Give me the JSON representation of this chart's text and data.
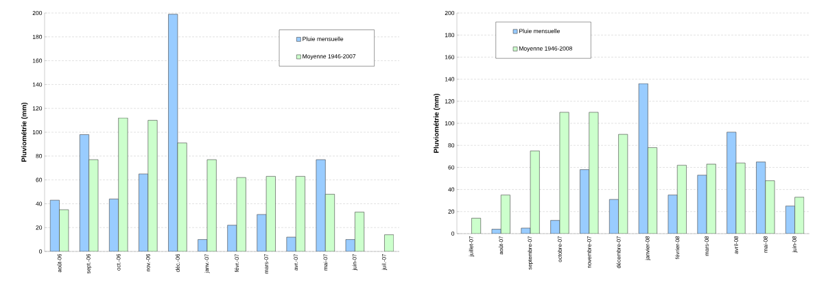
{
  "chart_data": [
    {
      "type": "bar",
      "ylabel": "Pluviométrie (mm)",
      "categories": [
        "août-06",
        "sept.-06",
        "oct.-06",
        "nov.-06",
        "déc.-06",
        "janv.-07",
        "févr.-07",
        "mars-07",
        "avr.-07",
        "mai-07",
        "juin-07",
        "juil.-07"
      ],
      "series": [
        {
          "name": "Pluie mensuelle",
          "color": "#99ccff",
          "values": [
            43,
            98,
            44,
            65,
            199,
            10,
            22,
            31,
            12,
            77,
            10,
            null
          ]
        },
        {
          "name": "Moyenne 1946-2007",
          "color": "#ccffcc",
          "values": [
            35,
            77,
            112,
            110,
            91,
            77,
            62,
            63,
            63,
            48,
            33,
            14
          ]
        }
      ],
      "ylim": [
        0,
        200
      ],
      "yticks": [
        0,
        20,
        40,
        60,
        80,
        100,
        120,
        140,
        160,
        180,
        200
      ],
      "grid": "y",
      "legend": "top right"
    },
    {
      "type": "bar",
      "ylabel": "Pluviométrie (mm)",
      "categories": [
        "juillet-07",
        "août-07",
        "septembre-07",
        "octobre-07",
        "novembre-07",
        "décembre-07",
        "janvier-08",
        "février-08",
        "mars-08",
        "avril-08",
        "mai-08",
        "juin-08"
      ],
      "series": [
        {
          "name": "Pluie mensuelle",
          "color": "#99ccff",
          "values": [
            null,
            4,
            5,
            12,
            58,
            31,
            136,
            35,
            53,
            92,
            65,
            25
          ]
        },
        {
          "name": "Moyenne 1946-2008",
          "color": "#ccffcc",
          "values": [
            14,
            35,
            75,
            110,
            110,
            90,
            78,
            62,
            63,
            64,
            48,
            33
          ]
        }
      ],
      "ylim": [
        0,
        200
      ],
      "yticks": [
        0,
        20,
        40,
        60,
        80,
        100,
        120,
        140,
        160,
        180,
        200
      ],
      "grid": "y",
      "legend": "top left"
    }
  ]
}
